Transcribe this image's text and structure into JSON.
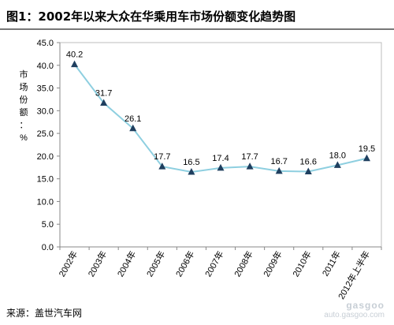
{
  "page": {
    "title": "图1：2002年以来大众在华乘用车市场份额变化趋势图",
    "source": "来源：盖世汽车网",
    "watermark_logo": "gasgoo",
    "watermark_url": "auto.gasgoo.com"
  },
  "chart_data": {
    "type": "line",
    "title": "",
    "ylabel": "市场份额：%",
    "xlabel": "",
    "categories": [
      "2002年",
      "2003年",
      "2004年",
      "2005年",
      "2006年",
      "2007年",
      "2008年",
      "2009年",
      "2010年",
      "2011年",
      "2012年上半年"
    ],
    "series": [
      {
        "values": [
          40.2,
          31.7,
          26.1,
          17.7,
          16.5,
          17.4,
          17.7,
          16.7,
          16.6,
          18.0,
          19.5
        ]
      }
    ],
    "data_labels": [
      "40.2",
      "31.7",
      "26.1",
      "17.7",
      "16.5",
      "17.4",
      "17.7",
      "16.7",
      "16.6",
      "18.0",
      "19.5"
    ],
    "ylim": [
      0,
      45
    ],
    "yticks": [
      0,
      5,
      10,
      15,
      20,
      25,
      30,
      35,
      40,
      45
    ],
    "ytick_labels": [
      "0.0",
      "5.0",
      "10.0",
      "15.0",
      "20.0",
      "25.0",
      "30.0",
      "35.0",
      "40.0",
      "45.0"
    ],
    "grid": false,
    "legend": "none",
    "line_color": "#8ecfe0",
    "marker_color": "#1f3f5f",
    "marker_shape": "triangle"
  }
}
